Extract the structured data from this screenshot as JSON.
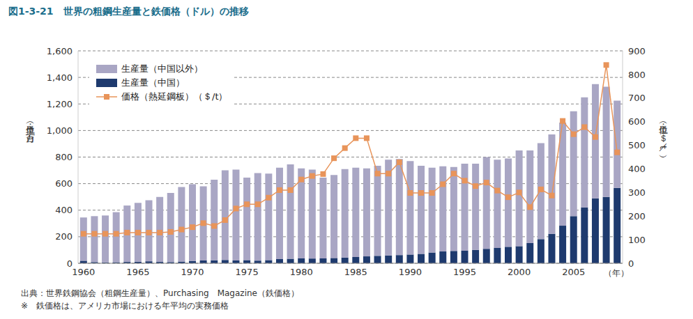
{
  "chart_data": {
    "type": "bar",
    "title": "図1-3-21　世界の粗鋼生産量と鉄価格（ドル）の推移",
    "categories": [
      "1960",
      null,
      null,
      null,
      null,
      "1965",
      null,
      null,
      null,
      null,
      "1970",
      null,
      null,
      null,
      null,
      "1975",
      null,
      null,
      null,
      null,
      "1980",
      null,
      null,
      null,
      null,
      "1985",
      null,
      null,
      null,
      null,
      "1990",
      null,
      null,
      null,
      null,
      "1995",
      null,
      null,
      null,
      null,
      "2000",
      null,
      null,
      null,
      null,
      "2005",
      null,
      null,
      null,
      null
    ],
    "xlabel": "（年）",
    "ylabel": "（単位：百万t）",
    "y2label": "（単位：＄／t）",
    "series": [
      {
        "name": "生産量（中国以外）",
        "color": "#a9a6c4",
        "values": [
          326,
          346,
          353,
          377,
          425,
          443,
          460,
          490,
          521,
          562,
          577,
          559,
          607,
          675,
          684,
          621,
          660,
          651,
          688,
          711,
          678,
          669,
          608,
          625,
          667,
          673,
          663,
          679,
          721,
          723,
          704,
          664,
          639,
          641,
          632,
          655,
          649,
          691,
          664,
          666,
          721,
          698,
          723,
          748,
          777,
          790,
          829,
          861,
          830,
          657
        ]
      },
      {
        "name": "生産量（中国）",
        "color": "#1e3a6e",
        "values": [
          19,
          9,
          7,
          8,
          10,
          12,
          15,
          10,
          9,
          13,
          18,
          21,
          23,
          25,
          21,
          24,
          20,
          24,
          32,
          34,
          37,
          36,
          37,
          40,
          43,
          47,
          52,
          56,
          59,
          62,
          66,
          71,
          81,
          89,
          93,
          95,
          101,
          109,
          116,
          124,
          129,
          152,
          182,
          222,
          283,
          355,
          421,
          489,
          500,
          568
        ]
      },
      {
        "name": "価格（熱延鋼板）（＄/t）",
        "type": "line",
        "axis": "y2",
        "color": "#e8945a",
        "marker": "square",
        "values": [
          125,
          125,
          125,
          125,
          130,
          130,
          130,
          130,
          133,
          143,
          153,
          170,
          158,
          183,
          232,
          250,
          250,
          278,
          310,
          310,
          355,
          370,
          378,
          445,
          488,
          530,
          530,
          380,
          380,
          428,
          298,
          298,
          298,
          335,
          380,
          350,
          327,
          342,
          308,
          280,
          300,
          238,
          313,
          287,
          603,
          547,
          577,
          535,
          840,
          470
        ]
      }
    ],
    "stacked": true,
    "grid": true,
    "legend": "top-left",
    "ylim": [
      0,
      1600
    ],
    "yticks": [
      0,
      200,
      400,
      600,
      800,
      {
        "value": 1000,
        "label": "1,000"
      },
      {
        "value": 1200,
        "label": "1,200"
      },
      {
        "value": 1400,
        "label": "1,400"
      },
      {
        "value": 1600,
        "label": "1,600"
      }
    ],
    "y2lim": [
      0,
      900
    ],
    "y2ticks": [
      0,
      100,
      200,
      300,
      400,
      500,
      600,
      700,
      800,
      900
    ],
    "annotations": [
      "出典：世界鉄鋼協会（粗鋼生産量）、Purchasing　Magazine（鉄価格）",
      "※　鉄価格は、アメリカ市場における年平均の実務価格"
    ]
  }
}
